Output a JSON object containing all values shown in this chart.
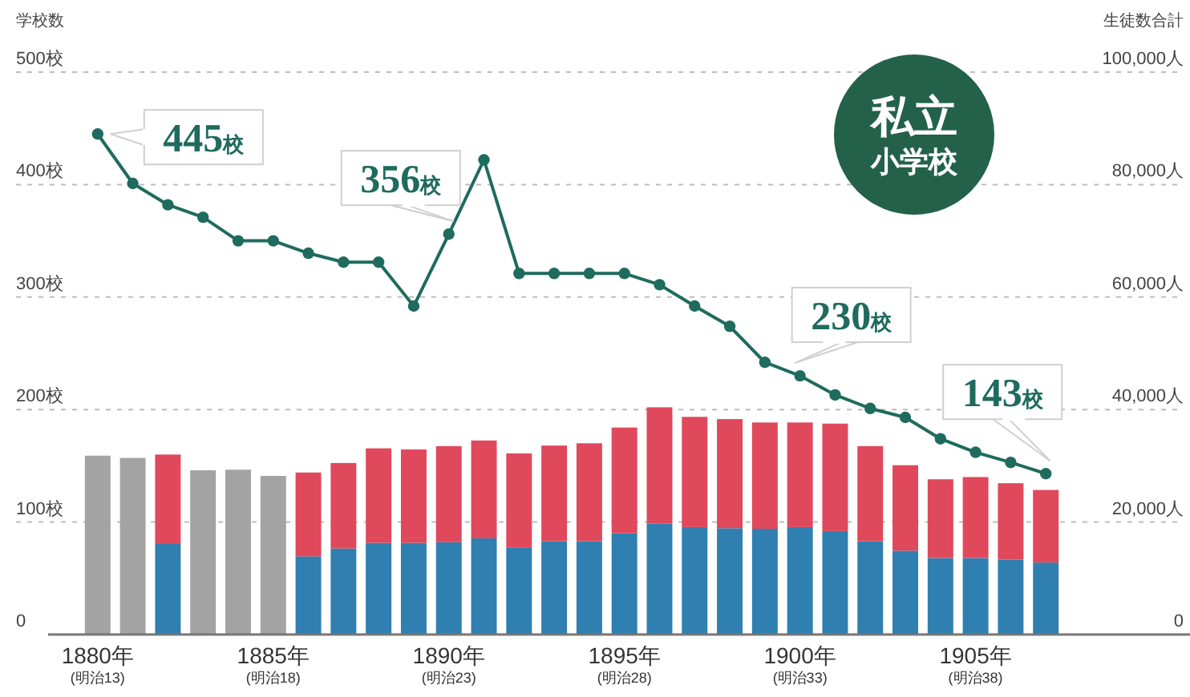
{
  "chart_data": {
    "type": "bar",
    "title": "私立",
    "subtitle": "小学校",
    "ylabel": "学校数",
    "y2label": "生徒数合計",
    "categories": [
      "1880年\n(明治13)",
      null,
      null,
      null,
      null,
      "1885年\n(明治18)",
      null,
      null,
      null,
      null,
      "1890年\n(明治23)",
      null,
      null,
      null,
      null,
      "1895年\n(明治28)",
      null,
      null,
      null,
      null,
      "1900年\n(明治33)",
      null,
      null,
      null,
      null,
      "1905年\n(明治38)",
      null,
      null
    ],
    "stacked": true,
    "series": [
      {
        "axis": "y2",
        "color": "#2f7fb0",
        "values": [
          null,
          null,
          16100,
          null,
          null,
          null,
          13900,
          15300,
          16300,
          16300,
          16400,
          17100,
          15500,
          16600,
          16600,
          18000,
          19700,
          19100,
          18900,
          18800,
          19100,
          18400,
          16600,
          14900,
          13600,
          13600,
          13300,
          12800
        ]
      },
      {
        "axis": "y2",
        "color": "#e0485c",
        "values": [
          null,
          null,
          15900,
          null,
          null,
          null,
          14900,
          15200,
          16800,
          16600,
          17100,
          17400,
          16700,
          17000,
          17400,
          18800,
          20700,
          19600,
          19400,
          18900,
          18600,
          19100,
          16900,
          15200,
          14000,
          14400,
          13600,
          12900
        ]
      },
      {
        "axis": "y2",
        "color": "#a3a3a3",
        "values": [
          31800,
          31400,
          null,
          29200,
          29300,
          28200,
          null,
          null,
          null,
          null,
          null,
          null,
          null,
          null,
          null,
          null,
          null,
          null,
          null,
          null,
          null,
          null,
          null,
          null,
          null,
          null,
          null,
          null
        ]
      },
      {
        "type": "line",
        "color": "#1f6b5e",
        "values": [
          445,
          401,
          382,
          371,
          350,
          350,
          339,
          331,
          331,
          292,
          356,
          422,
          321,
          321,
          321,
          321,
          311,
          292,
          274,
          242,
          230,
          213,
          201,
          193,
          174,
          162,
          153,
          143
        ]
      }
    ],
    "marker": "circle",
    "ylim": [
      0,
      500
    ],
    "yticks": [
      {
        "value": 0,
        "label": "0"
      },
      {
        "value": 100,
        "label": "100校"
      },
      {
        "value": 200,
        "label": "200校"
      },
      {
        "value": 300,
        "label": "300校"
      },
      {
        "value": 400,
        "label": "400校"
      },
      {
        "value": 500,
        "label": "500校"
      }
    ],
    "y2lim": [
      0,
      100000
    ],
    "y2ticks": [
      {
        "value": 0,
        "label": "0"
      },
      {
        "value": 20000,
        "label": "20,000人"
      },
      {
        "value": 40000,
        "label": "40,000人"
      },
      {
        "value": 60000,
        "label": "60,000人"
      },
      {
        "value": 80000,
        "label": "80,000人"
      },
      {
        "value": 100000,
        "label": "100,000人"
      }
    ],
    "grid": "y",
    "annotations": [
      {
        "text": "445校",
        "x": "1880年\n(明治13)",
        "y": 445
      },
      {
        "text": "356校",
        "x": "1890年\n(明治23)",
        "y": 356
      },
      {
        "text": "230校",
        "x": "1900年\n(明治33)",
        "y": 230
      },
      "143校"
    ]
  }
}
